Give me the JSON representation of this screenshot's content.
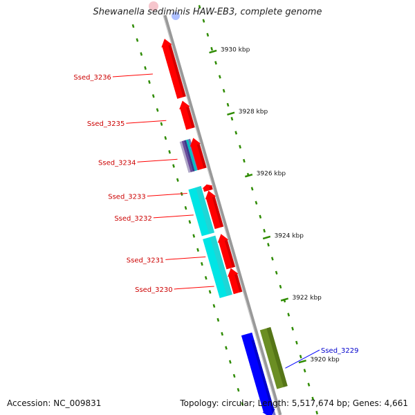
{
  "title": "Shewanella sediminis HAW-EB3, complete genome",
  "footer": {
    "accession": "Accession: NC_009831",
    "summary": "Topology: circular; Length: 5,517,674 bp; Genes: 4,661"
  },
  "colors": {
    "reverse_gene": "#ff0000",
    "forward_gene": "#0000ff",
    "cyan_feature": "#00e5e5",
    "olive_feature": "#6b8e23",
    "backbone": "#999999",
    "tick": "#2e8b00",
    "reverse_label": "#cc0000",
    "forward_label": "#0000cc"
  },
  "scale": {
    "top_kbp": 3931.5,
    "bottom_kbp": 3918.6,
    "ticks": [
      {
        "label": "3930 kbp",
        "kbp": 3930
      },
      {
        "label": "3928 kbp",
        "kbp": 3928
      },
      {
        "label": "3926 kbp",
        "kbp": 3926
      },
      {
        "label": "3924 kbp",
        "kbp": 3924
      },
      {
        "label": "3922 kbp",
        "kbp": 3922
      },
      {
        "label": "3920 kbp",
        "kbp": 3920
      }
    ]
  },
  "genes": [
    {
      "name": "Ssed_3236",
      "strand": "reverse",
      "start_kbp": 3928.9,
      "end_kbp": 3930.8
    },
    {
      "name": "Ssed_3235",
      "strand": "reverse",
      "start_kbp": 3927.9,
      "end_kbp": 3928.8
    },
    {
      "name": "Ssed_3234",
      "strand": "reverse",
      "start_kbp": 3926.6,
      "end_kbp": 3927.6
    },
    {
      "name": "Ssed_3233",
      "strand": "reverse",
      "start_kbp": 3925.9,
      "end_kbp": 3926.1
    },
    {
      "name": "Ssed_3232",
      "strand": "reverse",
      "start_kbp": 3924.7,
      "end_kbp": 3925.9
    },
    {
      "name": "Ssed_3231",
      "strand": "reverse",
      "start_kbp": 3923.4,
      "end_kbp": 3924.5
    },
    {
      "name": "Ssed_3230",
      "strand": "reverse",
      "start_kbp": 3922.6,
      "end_kbp": 3923.4
    },
    {
      "name": "Ssed_3229",
      "strand": "forward",
      "start_kbp": 3918.6,
      "end_kbp": 3921.3
    }
  ],
  "features": [
    {
      "name": "feature-cyan-1",
      "track": "cyan",
      "start_kbp": 3924.6,
      "end_kbp": 3926.1
    },
    {
      "name": "feature-cyan-2",
      "track": "cyan",
      "start_kbp": 3922.6,
      "end_kbp": 3924.5
    },
    {
      "name": "feature-multicolor",
      "track": "multi",
      "start_kbp": 3926.6,
      "end_kbp": 3927.6
    },
    {
      "name": "feature-olive",
      "track": "olive",
      "start_kbp": 3919.4,
      "end_kbp": 3921.3
    }
  ]
}
